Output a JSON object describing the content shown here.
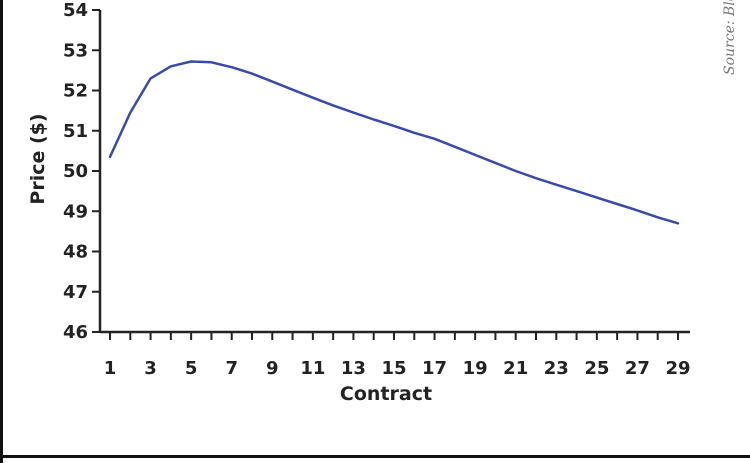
{
  "chart_data": {
    "type": "line",
    "title": "",
    "xlabel": "Contract",
    "ylabel": "Price ($)",
    "xlim": [
      1,
      29
    ],
    "ylim": [
      46,
      54
    ],
    "x_ticks": [
      1,
      3,
      5,
      7,
      9,
      11,
      13,
      15,
      17,
      19,
      21,
      23,
      25,
      27,
      29
    ],
    "y_ticks": [
      46,
      47,
      48,
      49,
      50,
      51,
      52,
      53,
      54
    ],
    "grid": false,
    "x": [
      1,
      2,
      3,
      4,
      5,
      6,
      7,
      8,
      9,
      10,
      11,
      12,
      13,
      14,
      15,
      16,
      17,
      18,
      19,
      20,
      21,
      22,
      23,
      24,
      25,
      26,
      27,
      28,
      29
    ],
    "series": [
      {
        "color": "#3a4aa8",
        "values": [
          50.35,
          51.45,
          52.3,
          52.6,
          52.72,
          52.7,
          52.58,
          52.42,
          52.22,
          52.02,
          51.82,
          51.63,
          51.45,
          51.28,
          51.12,
          50.95,
          50.8,
          50.6,
          50.4,
          50.2,
          50.0,
          49.82,
          49.66,
          49.5,
          49.34,
          49.18,
          49.02,
          48.85,
          48.7
        ]
      }
    ],
    "source_note": "Source: Blo"
  },
  "colors": {
    "axis": "#222222",
    "line": "#3a4aa8",
    "frame": "#111111"
  }
}
